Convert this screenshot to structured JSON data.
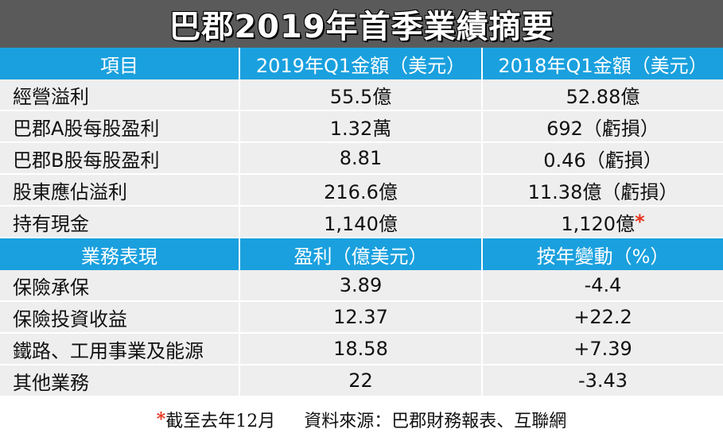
{
  "title": "巴郡2019年首季業績摘要",
  "table1": {
    "headers": [
      "項目",
      "2019年Q1金額（美元）",
      "2018年Q1金額（美元）"
    ],
    "rows": [
      [
        "經營溢利",
        "55.5億",
        "52.88億"
      ],
      [
        "巴郡A股每股盈利",
        "1.32萬",
        "692（虧損）"
      ],
      [
        "巴郡B股每股盈利",
        "8.81",
        "0.46（虧損）"
      ],
      [
        "股東應佔溢利",
        "216.6億",
        "11.38億（虧損）"
      ],
      [
        "持有現金",
        "1,140億",
        "1,120億"
      ]
    ],
    "star_mark": "*"
  },
  "table2": {
    "headers": [
      "業務表現",
      "盈利（億美元）",
      "按年變動（%）"
    ],
    "rows": [
      [
        "保險承保",
        "3.89",
        "-4.4"
      ],
      [
        "保險投資收益",
        "12.37",
        "+22.2"
      ],
      [
        "鐵路、工用事業及能源",
        "18.58",
        "+7.39"
      ],
      [
        "其他業務",
        "22",
        "-3.43"
      ]
    ]
  },
  "footer": {
    "star": "*",
    "note": "截至去年12月",
    "source": "資料來源：巴郡財務報表、互聯網"
  },
  "colors": {
    "title_bg": "#5a5a5a",
    "header_bg": "#1aa0de",
    "row_bg": "#eeeeee",
    "star": "#e8331c"
  }
}
